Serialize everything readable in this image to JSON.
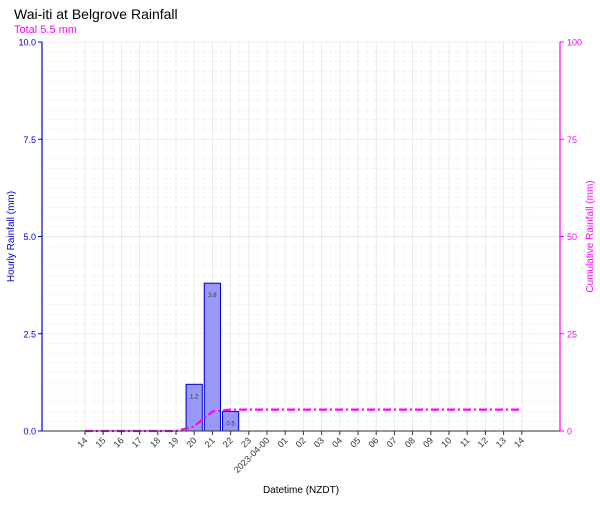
{
  "chart_data": {
    "type": "bar",
    "title": "Wai-iti at Belgrove Rainfall",
    "subtitle": "Total 5.5 mm",
    "xlabel": "Datetime (NZDT)",
    "ylabel": "Hourly Rainfall (mm)",
    "y2label": "Cumulative Rainfall (mm)",
    "ylim": [
      0,
      10
    ],
    "y2lim": [
      0,
      100
    ],
    "yticks": [
      "0.0",
      "2.5",
      "5.0",
      "7.5",
      "10.0"
    ],
    "y2ticks": [
      "0",
      "25",
      "50",
      "75",
      "100"
    ],
    "categories": [
      "14",
      "15",
      "16",
      "17",
      "18",
      "19",
      "20",
      "21",
      "22",
      "23",
      "2023-04-00",
      "01",
      "02",
      "03",
      "04",
      "05",
      "06",
      "07",
      "08",
      "09",
      "10",
      "11",
      "12",
      "13",
      "14"
    ],
    "series": [
      {
        "type": "bar",
        "axis": "left",
        "values": [
          0,
          0,
          0,
          0,
          0,
          0,
          1.2,
          3.8,
          0.5,
          0,
          0,
          0,
          0,
          0,
          0,
          0,
          0,
          0,
          0,
          0,
          0,
          0,
          0,
          0,
          0
        ],
        "data_labels": [
          "",
          "",
          "",
          "",
          "",
          "",
          "1.2",
          "3.8",
          "0.5",
          "",
          "",
          "",
          "",
          "",
          "",
          "",
          "",
          "",
          "",
          "",
          "",
          "",
          "",
          "",
          ""
        ]
      },
      {
        "type": "line",
        "axis": "right",
        "style": "dash-dot",
        "values": [
          0,
          0,
          0,
          0,
          0,
          0,
          1.2,
          5.0,
          5.5,
          5.5,
          5.5,
          5.5,
          5.5,
          5.5,
          5.5,
          5.5,
          5.5,
          5.5,
          5.5,
          5.5,
          5.5,
          5.5,
          5.5,
          5.5,
          5.5
        ]
      }
    ],
    "grid": true,
    "legend": "none",
    "colors": {
      "bar_fill": "#9999f5",
      "bar_stroke": "#0000cc",
      "left_axis": "#0000cc",
      "right_axis": "#ff00ff",
      "cumulative_line": "#ff00ff",
      "grid": "#e6e6e6"
    }
  }
}
